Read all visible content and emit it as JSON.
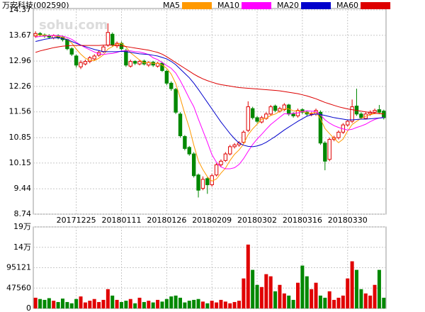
{
  "chart_data": [
    {
      "type": "candlestick",
      "title": "万安科技(002590)",
      "watermark": "sohu.com",
      "up_color": "#e00000",
      "down_color": "#008800",
      "grid": true,
      "categories": [
        null,
        null,
        null,
        null,
        null,
        null,
        null,
        null,
        null,
        "20171225",
        null,
        null,
        null,
        null,
        null,
        null,
        null,
        null,
        null,
        "20180111",
        null,
        null,
        null,
        null,
        null,
        null,
        null,
        null,
        null,
        "20180126",
        null,
        null,
        null,
        null,
        null,
        null,
        null,
        null,
        null,
        "20180209",
        null,
        null,
        null,
        null,
        null,
        null,
        null,
        null,
        null,
        "20180302",
        null,
        null,
        null,
        null,
        null,
        null,
        null,
        null,
        null,
        "20180316",
        null,
        null,
        null,
        null,
        null,
        null,
        null,
        null,
        null,
        "20180330",
        null,
        null,
        null,
        null,
        null,
        null,
        null,
        null
      ],
      "open": [
        13.65,
        13.72,
        13.68,
        13.66,
        13.6,
        13.66,
        13.62,
        13.55,
        13.3,
        13.1,
        12.8,
        12.88,
        12.95,
        13.02,
        13.12,
        13.22,
        13.4,
        13.7,
        13.38,
        13.45,
        13.25,
        12.82,
        12.95,
        12.88,
        12.96,
        12.85,
        12.93,
        12.82,
        12.9,
        12.68,
        12.35,
        12.18,
        11.5,
        10.88,
        10.58,
        10.4,
        9.82,
        9.45,
        9.72,
        9.55,
        9.82,
        10.1,
        10.22,
        10.4,
        10.6,
        10.65,
        10.72,
        11.05,
        11.65,
        11.4,
        11.28,
        11.38,
        11.5,
        11.72,
        11.58,
        11.62,
        11.75,
        11.5,
        11.45,
        11.62,
        11.55,
        11.48,
        11.5,
        11.55,
        10.7,
        10.25,
        10.8,
        10.85,
        11.0,
        11.2,
        11.3,
        11.72,
        11.5,
        11.38,
        11.5,
        11.55,
        11.62,
        11.58
      ],
      "high": [
        13.78,
        13.76,
        13.72,
        13.7,
        13.7,
        13.7,
        13.66,
        13.58,
        13.34,
        13.14,
        12.98,
        13.0,
        13.1,
        13.15,
        13.25,
        13.4,
        14.0,
        13.75,
        13.5,
        13.5,
        13.3,
        13.0,
        12.98,
        13.0,
        13.0,
        12.96,
        12.96,
        12.94,
        12.94,
        12.72,
        12.4,
        12.22,
        11.55,
        10.92,
        10.62,
        10.45,
        9.86,
        9.78,
        9.76,
        9.85,
        10.15,
        10.25,
        10.45,
        10.65,
        10.7,
        10.75,
        11.05,
        11.85,
        11.7,
        11.45,
        11.45,
        11.55,
        11.75,
        11.76,
        11.7,
        11.8,
        11.78,
        11.55,
        11.65,
        11.66,
        11.6,
        11.55,
        11.65,
        11.6,
        10.75,
        10.85,
        10.9,
        11.05,
        11.25,
        11.35,
        11.9,
        12.2,
        11.55,
        11.55,
        11.6,
        11.65,
        11.75,
        11.62
      ],
      "low": [
        13.6,
        13.64,
        13.6,
        13.58,
        13.56,
        13.56,
        13.5,
        13.26,
        13.1,
        12.78,
        12.74,
        12.84,
        12.9,
        12.98,
        13.08,
        13.18,
        13.35,
        13.35,
        13.32,
        13.26,
        12.8,
        12.78,
        12.85,
        12.84,
        12.84,
        12.8,
        12.8,
        12.78,
        12.66,
        12.3,
        12.14,
        11.5,
        10.85,
        10.5,
        10.35,
        9.75,
        9.2,
        9.4,
        9.3,
        9.5,
        9.78,
        10.05,
        10.18,
        10.36,
        10.55,
        10.6,
        10.68,
        11.0,
        11.35,
        11.25,
        11.24,
        11.34,
        11.45,
        11.55,
        11.54,
        11.58,
        11.45,
        11.4,
        11.4,
        11.5,
        11.45,
        11.44,
        11.45,
        10.65,
        9.95,
        10.2,
        10.75,
        10.8,
        10.95,
        11.15,
        11.25,
        11.45,
        11.35,
        11.35,
        11.45,
        11.5,
        11.5,
        11.35
      ],
      "close": [
        13.72,
        13.68,
        13.65,
        13.62,
        13.66,
        13.6,
        13.55,
        13.3,
        13.15,
        12.85,
        12.92,
        12.95,
        13.05,
        13.1,
        13.2,
        13.35,
        13.75,
        13.4,
        13.45,
        13.3,
        12.85,
        12.95,
        12.9,
        12.95,
        12.88,
        12.92,
        12.85,
        12.9,
        12.7,
        12.35,
        12.2,
        11.55,
        10.9,
        10.55,
        10.4,
        9.8,
        9.4,
        9.7,
        9.55,
        9.8,
        10.1,
        10.2,
        10.4,
        10.6,
        10.65,
        10.7,
        11.0,
        11.7,
        11.4,
        11.3,
        11.4,
        11.5,
        11.7,
        11.6,
        11.65,
        11.75,
        11.5,
        11.45,
        11.6,
        11.55,
        11.5,
        11.5,
        11.6,
        10.7,
        10.2,
        10.8,
        10.85,
        11.0,
        11.2,
        11.3,
        11.7,
        11.5,
        11.4,
        11.5,
        11.55,
        11.6,
        11.55,
        11.4
      ],
      "series": [
        {
          "name": "MA5",
          "color": "#ff9900",
          "values": [
            13.68,
            13.68,
            13.67,
            13.66,
            13.67,
            13.64,
            13.62,
            13.55,
            13.46,
            13.29,
            13.15,
            13.04,
            12.98,
            12.97,
            13.04,
            13.13,
            13.29,
            13.36,
            13.43,
            13.45,
            13.35,
            13.19,
            13.09,
            12.99,
            12.91,
            12.92,
            12.9,
            12.9,
            12.85,
            12.76,
            12.6,
            12.34,
            11.94,
            11.51,
            11.12,
            10.64,
            10.21,
            9.97,
            9.77,
            9.65,
            9.71,
            9.87,
            10.01,
            10.22,
            10.39,
            10.51,
            10.67,
            10.93,
            11.09,
            11.22,
            11.36,
            11.38,
            11.46,
            11.5,
            11.57,
            11.64,
            11.64,
            11.59,
            11.59,
            11.57,
            11.53,
            11.52,
            11.55,
            11.37,
            11.1,
            10.96,
            10.83,
            10.71,
            10.81,
            11.03,
            11.21,
            11.3,
            11.38,
            11.44,
            11.48,
            11.51,
            11.52,
            11.5
          ]
        },
        {
          "name": "MA10",
          "color": "#ff00ff",
          "values": [
            13.62,
            13.64,
            13.65,
            13.66,
            13.67,
            13.66,
            13.65,
            13.61,
            13.56,
            13.48,
            13.4,
            13.33,
            13.27,
            13.21,
            13.16,
            13.14,
            13.16,
            13.17,
            13.2,
            13.24,
            13.24,
            13.24,
            13.22,
            13.21,
            13.18,
            13.14,
            13.05,
            13.0,
            12.92,
            12.84,
            12.76,
            12.63,
            12.42,
            12.18,
            11.93,
            11.7,
            11.36,
            11.04,
            10.72,
            10.38,
            10.17,
            10.04,
            9.99,
            9.99,
            10.02,
            10.11,
            10.27,
            10.47,
            10.66,
            10.81,
            10.94,
            11.08,
            11.21,
            11.31,
            11.41,
            11.51,
            11.5,
            11.52,
            11.53,
            11.57,
            11.59,
            11.58,
            11.57,
            11.48,
            11.34,
            11.25,
            11.18,
            11.13,
            11.09,
            11.06,
            11.08,
            11.13,
            11.17,
            11.22,
            11.29,
            11.35,
            11.39,
            11.41
          ]
        },
        {
          "name": "MA20",
          "color": "#0000cc",
          "values": [
            13.5,
            13.53,
            13.56,
            13.58,
            13.6,
            13.6,
            13.58,
            13.55,
            13.5,
            13.45,
            13.4,
            13.36,
            13.32,
            13.28,
            13.25,
            13.22,
            13.22,
            13.22,
            13.22,
            13.23,
            13.22,
            13.2,
            13.18,
            13.16,
            13.15,
            13.14,
            13.12,
            13.1,
            13.06,
            13.02,
            12.95,
            12.86,
            12.74,
            12.62,
            12.5,
            12.35,
            12.18,
            12.0,
            11.82,
            11.64,
            11.46,
            11.28,
            11.12,
            10.96,
            10.82,
            10.7,
            10.64,
            10.61,
            10.6,
            10.62,
            10.66,
            10.72,
            10.8,
            10.88,
            10.97,
            11.06,
            11.14,
            11.22,
            11.3,
            11.37,
            11.44,
            11.48,
            11.5,
            11.49,
            11.46,
            11.43,
            11.4,
            11.38,
            11.36,
            11.34,
            11.34,
            11.35,
            11.36,
            11.36,
            11.37,
            11.38,
            11.39,
            11.4
          ]
        },
        {
          "name": "MA60",
          "color": "#dd0000",
          "values": [
            13.2,
            13.24,
            13.27,
            13.3,
            13.33,
            13.35,
            13.37,
            13.38,
            13.39,
            13.39,
            13.39,
            13.39,
            13.39,
            13.39,
            13.39,
            13.4,
            13.4,
            13.4,
            13.39,
            13.38,
            13.36,
            13.34,
            13.32,
            13.3,
            13.28,
            13.26,
            13.23,
            13.2,
            13.15,
            13.08,
            13.0,
            12.92,
            12.84,
            12.76,
            12.68,
            12.6,
            12.53,
            12.47,
            12.42,
            12.38,
            12.34,
            12.31,
            12.29,
            12.27,
            12.25,
            12.23,
            12.22,
            12.21,
            12.2,
            12.19,
            12.18,
            12.17,
            12.16,
            12.15,
            12.14,
            12.12,
            12.1,
            12.08,
            12.06,
            12.03,
            12.0,
            11.96,
            11.92,
            11.87,
            11.82,
            11.78,
            11.74,
            11.7,
            11.67,
            11.64,
            11.62,
            11.6,
            11.58,
            11.56,
            11.54,
            11.52,
            11.51,
            11.5
          ]
        }
      ],
      "ylim": [
        8.74,
        14.37
      ],
      "yticks": [
        14.37,
        13.67,
        12.96,
        12.26,
        11.56,
        10.85,
        10.15,
        9.44,
        8.74
      ]
    },
    {
      "type": "bar",
      "values": [
        25000,
        22000,
        20000,
        24000,
        18000,
        15000,
        23000,
        15000,
        12000,
        22000,
        28000,
        14000,
        18000,
        22000,
        15000,
        20000,
        45000,
        30000,
        20000,
        15000,
        18000,
        22000,
        12000,
        25000,
        15000,
        18000,
        14000,
        20000,
        16000,
        22000,
        28000,
        30000,
        25000,
        14000,
        18000,
        20000,
        22000,
        16000,
        12000,
        18000,
        14000,
        20000,
        16000,
        12000,
        15000,
        18000,
        70000,
        149000,
        90000,
        55000,
        50000,
        80000,
        75000,
        40000,
        55000,
        35000,
        30000,
        20000,
        60000,
        100000,
        75000,
        45000,
        60000,
        30000,
        25000,
        40000,
        20000,
        25000,
        30000,
        70000,
        110000,
        90000,
        45000,
        35000,
        30000,
        55000,
        90000,
        25000
      ],
      "ylim": [
        0,
        190242
      ],
      "yticks": [
        {
          "value": 190242,
          "label": "19万"
        },
        {
          "value": 142681,
          "label": "14万"
        },
        95121,
        47560,
        0
      ],
      "grid": true
    }
  ]
}
